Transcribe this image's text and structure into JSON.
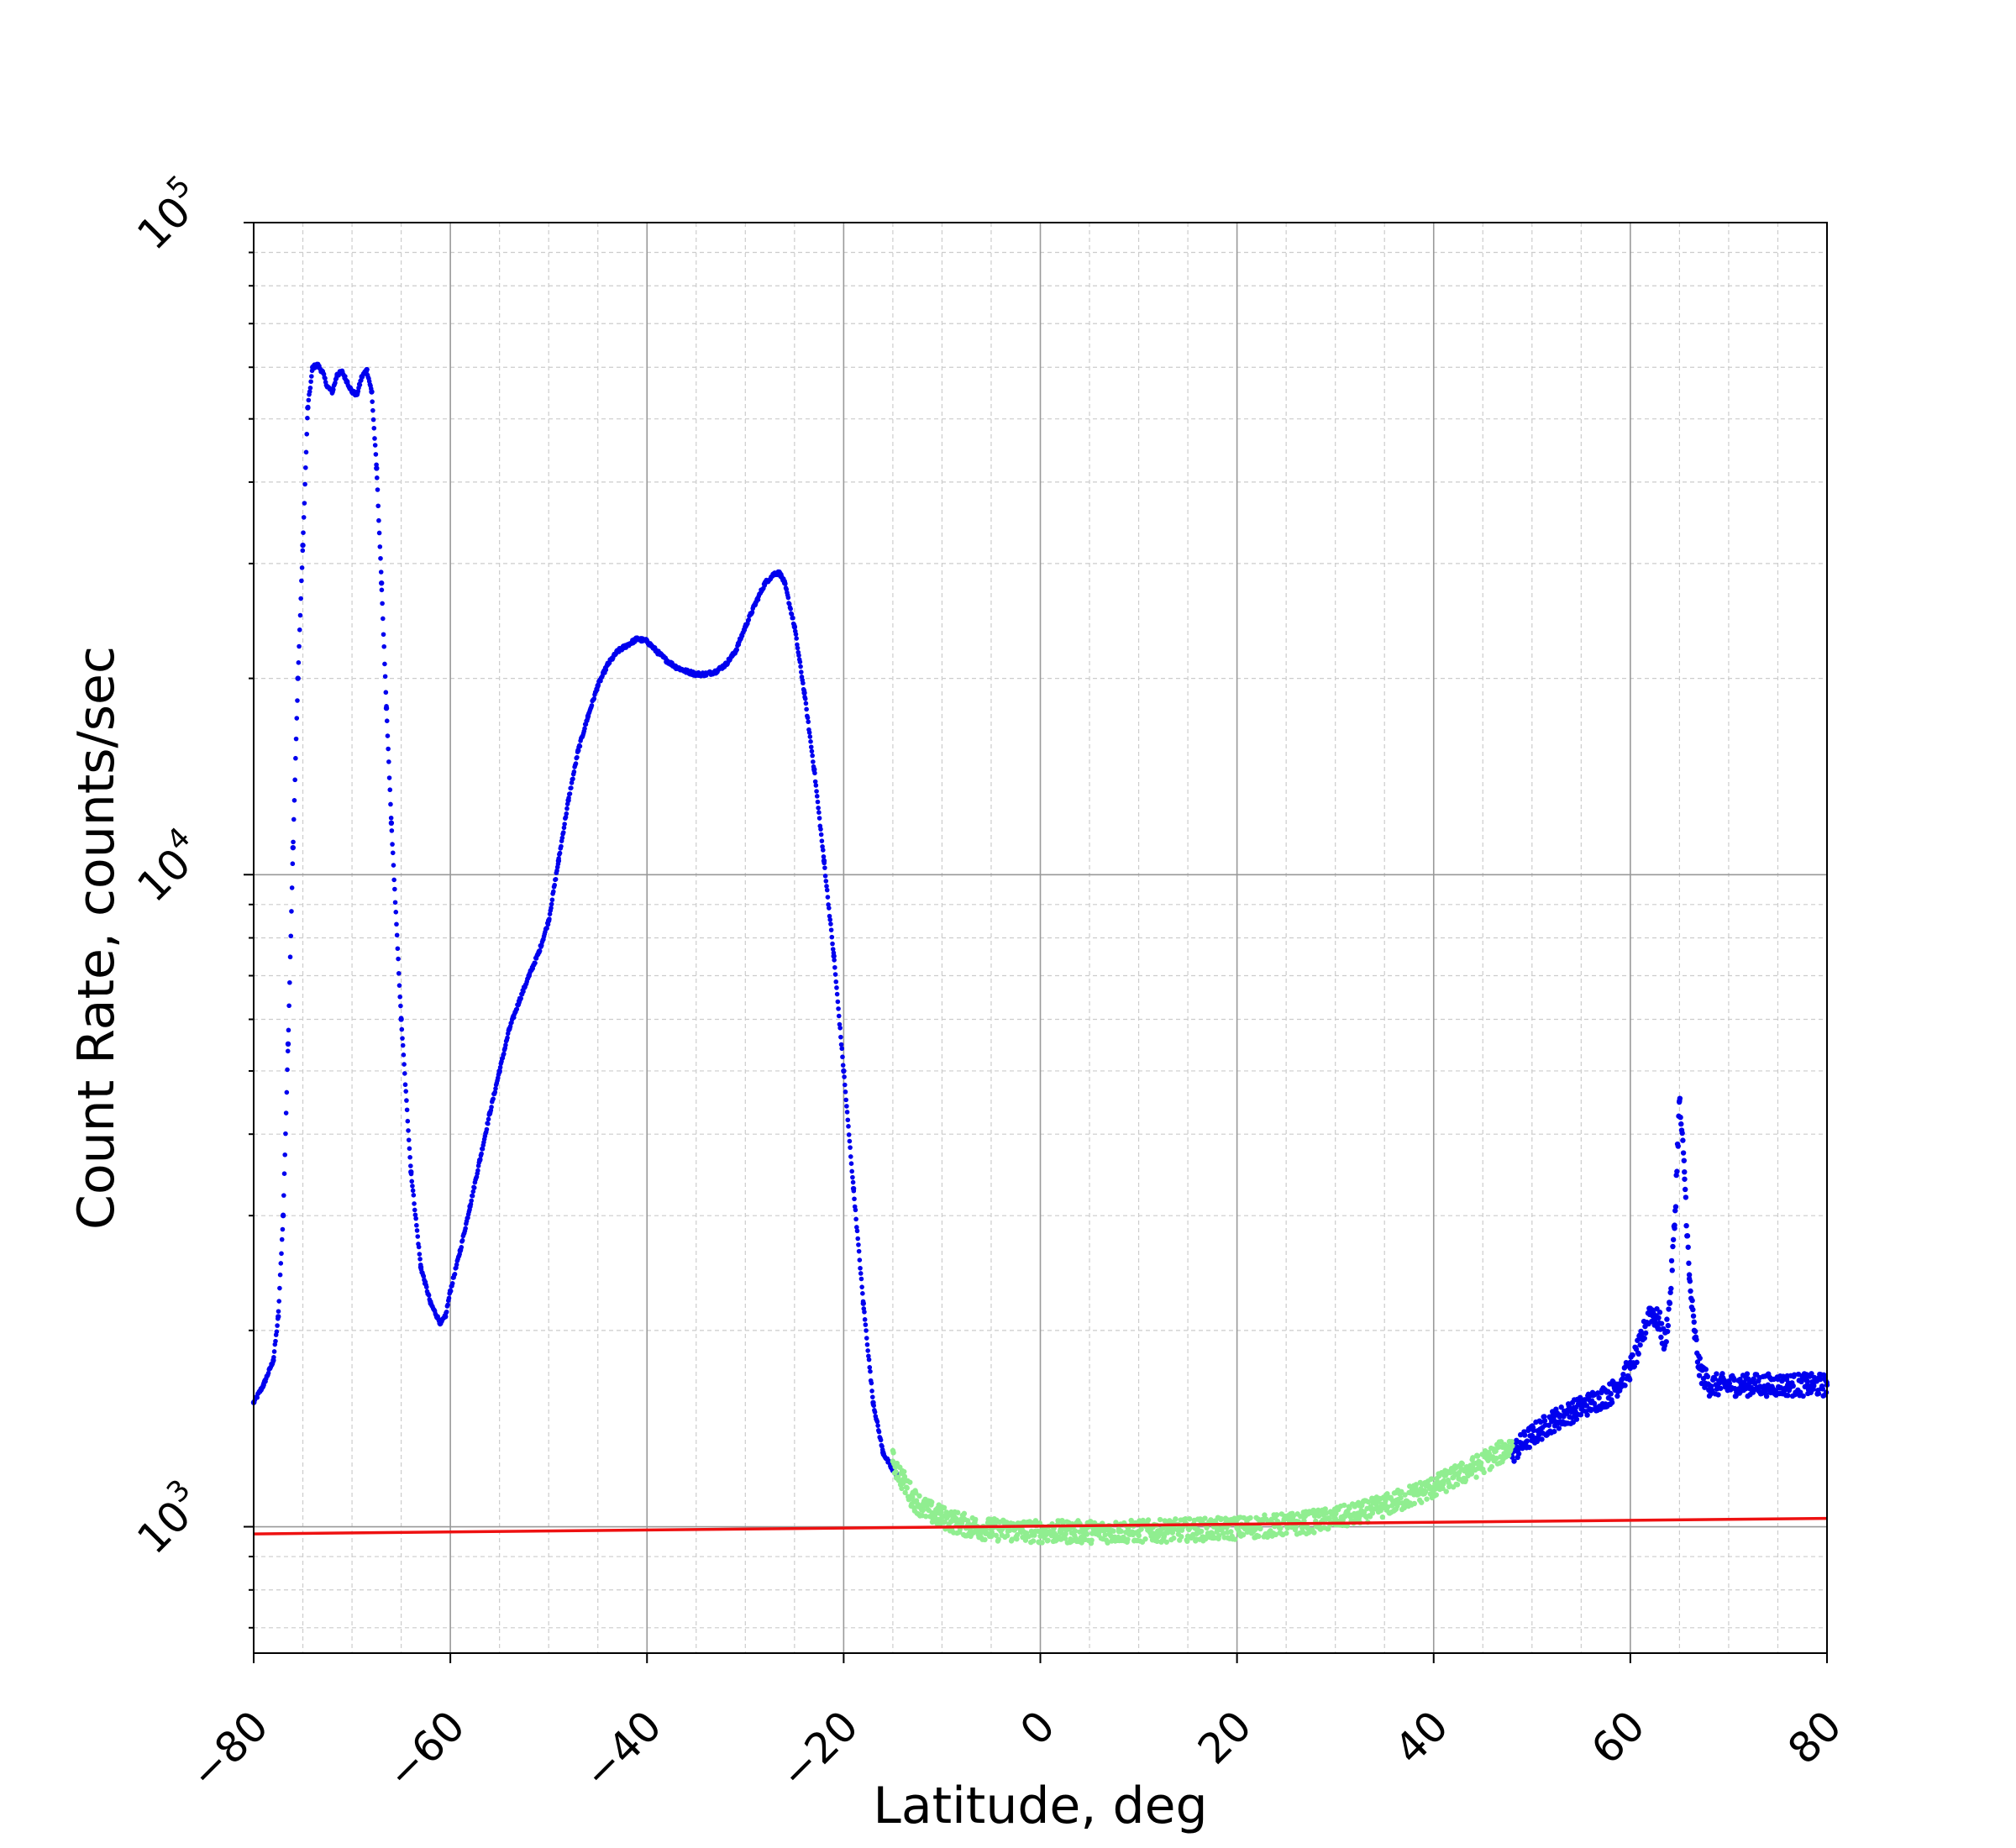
{
  "chart_data": {
    "type": "scatter",
    "title": "",
    "xlabel": "Latitude, deg",
    "ylabel": "Count Rate, counts/sec",
    "xlim": [
      -80,
      80
    ],
    "ylim": [
      640,
      100000
    ],
    "yscale": "log",
    "grid": true,
    "x_ticks": [
      -80,
      -60,
      -40,
      -20,
      0,
      20,
      40,
      60,
      80
    ],
    "x_tick_labels": [
      "−80",
      "−60",
      "−40",
      "−20",
      "0",
      "20",
      "40",
      "60",
      "80"
    ],
    "y_ticks": [
      {
        "value": 1000,
        "base": "10",
        "exp": "3"
      },
      {
        "value": 10000,
        "base": "10",
        "exp": "4"
      },
      {
        "value": 100000,
        "base": "10",
        "exp": "5"
      }
    ],
    "colors": {
      "high": "#0000ee",
      "background": "#90ee90",
      "fit": "#ee1111",
      "grid_major": "#999999",
      "grid_minor": "#cccccc"
    },
    "series": [
      {
        "role": "high",
        "color": "#0000ee",
        "x": [
          -80,
          -79,
          -78,
          -77.5,
          -77,
          -76.5,
          -76,
          -75.5,
          -75,
          -74.5,
          -74,
          -73.5,
          -73,
          -72.5,
          -72,
          -71.5,
          -71,
          -70.5,
          -70,
          -69.5,
          -69,
          -68.5,
          -68,
          -67.5,
          -67,
          -66.5,
          -66,
          -65,
          -64,
          -63,
          -62,
          -61,
          -60.5,
          -60,
          -59,
          -58,
          -57,
          -56,
          -55,
          -54,
          -53,
          -52,
          -51,
          -50,
          -49,
          -48,
          -47,
          -46,
          -45,
          -44,
          -43,
          -42,
          -41,
          -40,
          -39,
          -38,
          -37,
          -36,
          -35,
          -34,
          -33,
          -32,
          -31,
          -30,
          -29,
          -28,
          -27,
          -26.5,
          -26,
          -25,
          -24,
          -23,
          -22,
          -21,
          -20,
          -19,
          -18,
          -17,
          -16,
          -15,
          -14.5,
          48,
          50,
          52,
          54,
          56,
          58,
          60,
          61,
          62,
          63,
          63.5,
          64,
          64.5,
          65,
          65.5,
          66,
          66.5,
          67,
          68,
          70,
          72,
          74,
          76,
          78,
          80
        ],
        "y": [
          1550,
          1650,
          1800,
          2100,
          3000,
          5500,
          11000,
          20000,
          32000,
          52000,
          60000,
          60500,
          59000,
          56000,
          55000,
          58500,
          59000,
          57000,
          55000,
          54500,
          58000,
          59500,
          55000,
          42000,
          28000,
          18000,
          12000,
          6000,
          3500,
          2500,
          2200,
          2050,
          2100,
          2300,
          2650,
          3100,
          3650,
          4300,
          5000,
          5800,
          6400,
          7000,
          7600,
          8500,
          10500,
          13000,
          15500,
          17500,
          19500,
          21000,
          22000,
          22500,
          23000,
          22800,
          22000,
          21300,
          20800,
          20500,
          20300,
          20300,
          20500,
          21000,
          22000,
          24000,
          26000,
          28000,
          29000,
          29000,
          28000,
          24000,
          19000,
          14500,
          10500,
          7500,
          5000,
          3300,
          2200,
          1550,
          1300,
          1220,
          1200,
          1300,
          1380,
          1450,
          1500,
          1550,
          1600,
          1750,
          1900,
          2150,
          2050,
          1900,
          2200,
          2900,
          4500,
          3500,
          2400,
          2000,
          1750,
          1650,
          1650,
          1650,
          1650,
          1650,
          1650,
          1650
        ]
      },
      {
        "role": "background",
        "color": "#90ee90",
        "x": [
          -15,
          -14,
          -13,
          -12,
          -11,
          -10,
          -9,
          -8,
          -7,
          -6,
          -5,
          -4,
          -2,
          0,
          2,
          4,
          6,
          8,
          10,
          12,
          14,
          16,
          18,
          20,
          22,
          24,
          26,
          28,
          30,
          32,
          34,
          36,
          38,
          40,
          42,
          44,
          46,
          48
        ],
        "y": [
          1260,
          1180,
          1110,
          1070,
          1050,
          1035,
          1020,
          1010,
          1000,
          995,
          990,
          988,
          985,
          983,
          982,
          982,
          982,
          983,
          984,
          985,
          988,
          990,
          992,
          995,
          1000,
          1005,
          1010,
          1020,
          1030,
          1045,
          1065,
          1090,
          1120,
          1150,
          1190,
          1230,
          1280,
          1330
        ]
      }
    ],
    "fit_line": {
      "color": "#ee1111",
      "x": [
        -80,
        80
      ],
      "y": [
        975,
        1030
      ]
    }
  }
}
